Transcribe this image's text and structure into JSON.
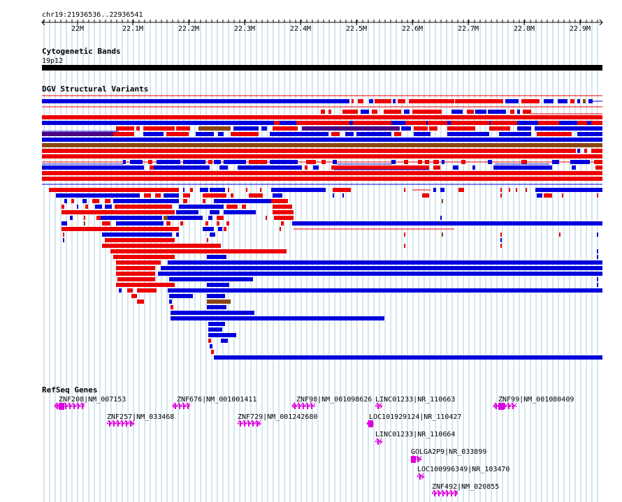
{
  "header": {
    "region": "chr19:21936536..22936541"
  },
  "ruler": {
    "ticks": [
      "22M",
      "22.1M",
      "22.2M",
      "22.3M",
      "22.4M",
      "22.5M",
      "22.6M",
      "22.7M",
      "22.8M",
      "22.9M"
    ]
  },
  "tracks": {
    "cytobands": {
      "title": "Cytogenetic Bands",
      "band": "19p12"
    },
    "dgv": {
      "title": "DGV Structural Variants"
    },
    "refseq": {
      "title": "RefSeq Genes",
      "genes": [
        {
          "label": "ZNF208|NM_007153",
          "strand": "-"
        },
        {
          "label": "ZNF257|NM_033468",
          "strand": "+"
        },
        {
          "label": "ZNF676|NM_001001411",
          "strand": "-"
        },
        {
          "label": "ZNF729|NM_001242680",
          "strand": "+"
        },
        {
          "label": "ZNF98|NM_001098626",
          "strand": "-"
        },
        {
          "label": "LINC01233|NR_110663",
          "strand": "+"
        },
        {
          "label": "LOC101929124|NR_110427",
          "strand": "-"
        },
        {
          "label": "LINC01233|NR_110664",
          "strand": "+"
        },
        {
          "label": "GOLGA2P9|NR_033899",
          "strand": "+"
        },
        {
          "label": "LOC100996349|NR_103470",
          "strand": "+"
        },
        {
          "label": "ZNF492|NM_020855",
          "strand": "+"
        },
        {
          "label": "ZNF99|NM_001080409",
          "strand": "-"
        }
      ]
    }
  },
  "colors": {
    "gain": "#0000dd",
    "loss": "#ee0000",
    "both": "#8b4513",
    "inversion": "#4b0082",
    "gene": "#dd00dd",
    "gridline": "#a8cce0",
    "cytoband": "#000000"
  }
}
